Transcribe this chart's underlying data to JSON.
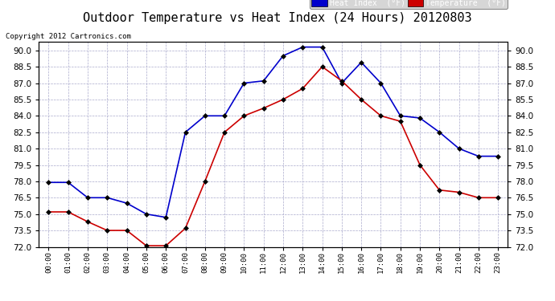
{
  "title": "Outdoor Temperature vs Heat Index (24 Hours) 20120803",
  "copyright": "Copyright 2012 Cartronics.com",
  "hours": [
    "00:00",
    "01:00",
    "02:00",
    "03:00",
    "04:00",
    "05:00",
    "06:00",
    "07:00",
    "08:00",
    "09:00",
    "10:00",
    "11:00",
    "12:00",
    "13:00",
    "14:00",
    "15:00",
    "16:00",
    "17:00",
    "18:00",
    "19:00",
    "20:00",
    "21:00",
    "22:00",
    "23:00"
  ],
  "heat_index": [
    77.9,
    77.9,
    76.5,
    76.5,
    76.0,
    75.0,
    74.7,
    82.5,
    84.0,
    84.0,
    87.0,
    87.2,
    89.5,
    90.3,
    90.3,
    87.0,
    88.9,
    87.0,
    84.0,
    83.8,
    82.5,
    81.0,
    80.3,
    80.3
  ],
  "temperature": [
    75.2,
    75.2,
    74.3,
    73.5,
    73.5,
    72.1,
    72.1,
    73.7,
    78.0,
    82.5,
    84.0,
    84.7,
    85.5,
    86.5,
    88.5,
    87.2,
    85.5,
    84.0,
    83.5,
    79.5,
    77.2,
    77.0,
    76.5,
    76.5
  ],
  "heat_index_color": "#0000CC",
  "temperature_color": "#CC0000",
  "ylim": [
    72.0,
    90.75
  ],
  "yticks": [
    72.0,
    73.5,
    75.0,
    76.5,
    78.0,
    79.5,
    81.0,
    82.5,
    84.0,
    85.5,
    87.0,
    88.5,
    90.0
  ],
  "background_color": "#ffffff",
  "grid_color": "#aaaacc",
  "title_fontsize": 11,
  "legend_hi_label": "Heat Index  (°F)",
  "legend_temp_label": "Temperature  (°F)"
}
